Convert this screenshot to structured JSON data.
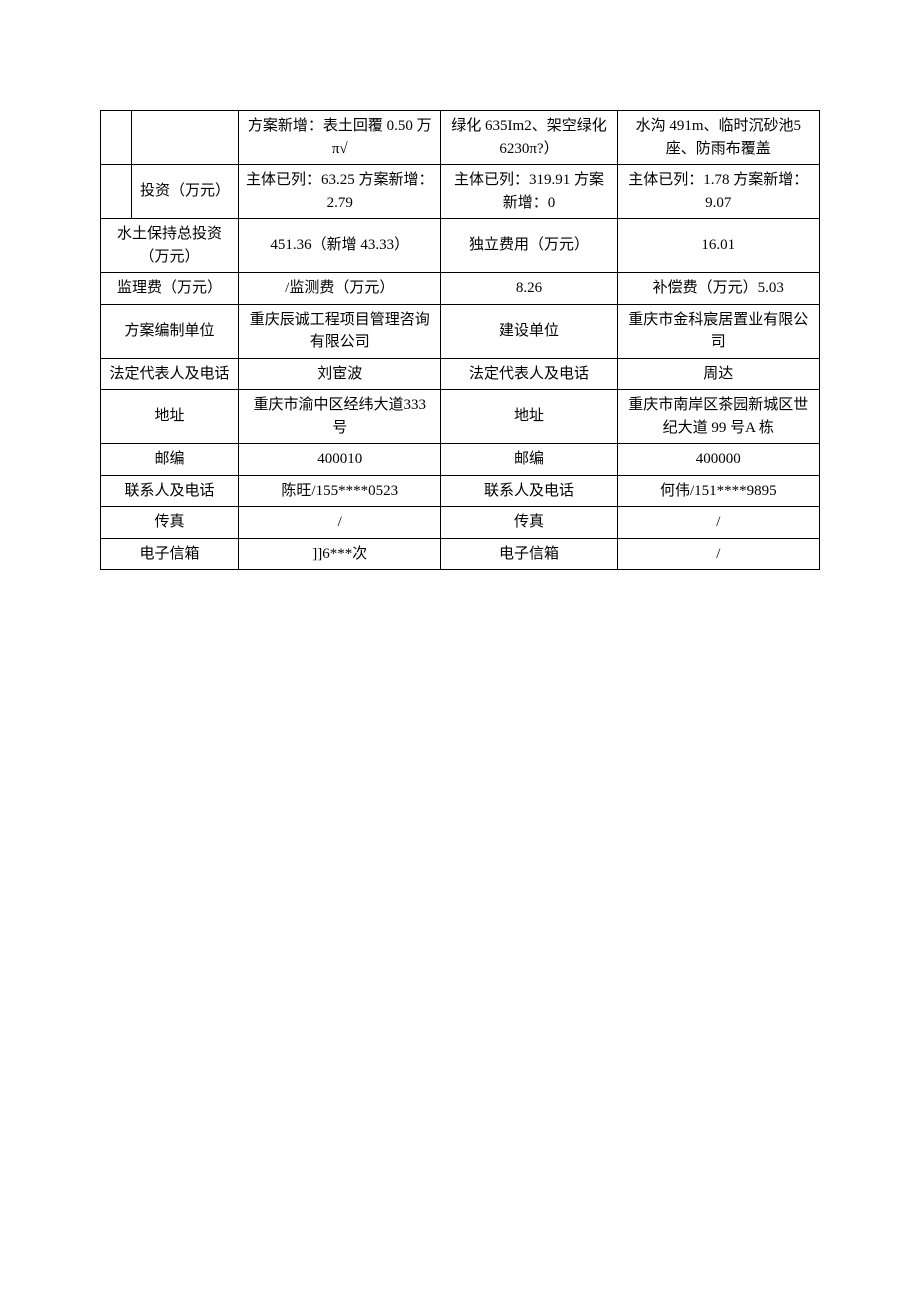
{
  "table": {
    "rows": [
      {
        "c0": "",
        "c1": "",
        "c2": "方案新增：表土回覆 0.50 万 π√",
        "c3": "绿化 635Im2、架空绿化 6230π?）",
        "c4": "水沟 491m、临时沉砂池5 座、防雨布覆盖"
      },
      {
        "c0": "",
        "c1": "投资（万元）",
        "c2": "主体已列：63.25 方案新增：2.79",
        "c3": "主体已列：319.91 方案新增：0",
        "c4": "主体已列：1.78 方案新增：9.07"
      },
      {
        "label": "水土保持总投资（万元）",
        "v1": "451.36（新增 43.33）",
        "v2": "独立费用（万元）",
        "v3": "16.01"
      },
      {
        "label": "监理费（万元）",
        "v1": "/监测费（万元）",
        "v2": "8.26",
        "v3": "补偿费（万元）5.03"
      },
      {
        "label": "方案编制单位",
        "v1": "重庆辰诚工程项目管理咨询有限公司",
        "v2": "建设单位",
        "v3": "重庆市金科宸居置业有限公司"
      },
      {
        "label": "法定代表人及电话",
        "v1": "刘宦波",
        "v2": "法定代表人及电话",
        "v3": "周达"
      },
      {
        "label": "地址",
        "v1": "重庆市渝中区经纬大道333 号",
        "v2": "地址",
        "v3": "重庆市南岸区茶园新城区世纪大道 99 号A 栋"
      },
      {
        "label": "邮编",
        "v1": "400010",
        "v2": "邮编",
        "v3": "400000"
      },
      {
        "label": "联系人及电话",
        "v1": "陈旺/155****0523",
        "v2": "联系人及电话",
        "v3": "何伟/151****9895"
      },
      {
        "label": "传真",
        "v1": "/",
        "v2": "传真",
        "v3": "/"
      },
      {
        "label": "电子信箱",
        "v1": "]]6***次",
        "v2": "电子信箱",
        "v3": "/"
      }
    ],
    "style": {
      "border_color": "#000000",
      "text_color": "#000000",
      "background_color": "#ffffff",
      "font_size": 15,
      "font_family": "SimSun"
    }
  }
}
